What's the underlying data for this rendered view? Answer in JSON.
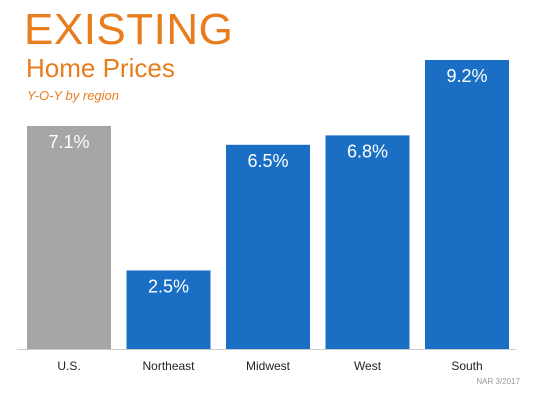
{
  "colors": {
    "title": "#e87d1e",
    "benchmark_bar": "#a6a6a6",
    "region_bar": "#1a6fc4",
    "axis": "#cccccc"
  },
  "text": {
    "title": "EXISTING",
    "subtitle": "Home Prices",
    "subsubtitle": "Y-O-Y by region",
    "source": "NAR 3/2017"
  },
  "chart_data": {
    "type": "bar",
    "title": "EXISTING Home Prices",
    "subtitle": "Y-O-Y by region",
    "categories": [
      "U.S.",
      "Northeast",
      "Midwest",
      "West",
      "South"
    ],
    "values": [
      7.1,
      2.5,
      6.5,
      6.8,
      9.2
    ],
    "value_labels": [
      "7.1%",
      "2.5%",
      "6.5%",
      "6.8%",
      "9.2%"
    ],
    "highlight": "U.S.",
    "unit": "%",
    "xlabel": "",
    "ylabel": "",
    "ylim": [
      0,
      9.2
    ],
    "grid": false,
    "legend": "none"
  }
}
